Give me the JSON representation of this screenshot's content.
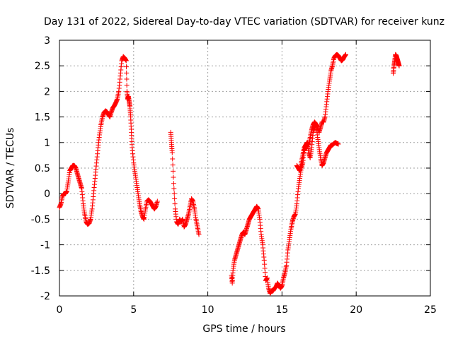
{
  "chart_data": {
    "type": "scatter",
    "title": "Day 131 of 2022, Sidereal Day-to-day VTEC variation (SDTVAR) for receiver kunz",
    "xlabel": "GPS time / hours",
    "ylabel": "SDTVAR / TECUs",
    "xlim": [
      0,
      25
    ],
    "ylim": [
      -2,
      3
    ],
    "x_ticks": [
      0,
      5,
      10,
      15,
      20,
      25
    ],
    "x_tick_labels": [
      "0",
      "5",
      "10",
      "15",
      "20",
      "25"
    ],
    "y_ticks": [
      -2,
      -1.5,
      -1,
      -0.5,
      0,
      0.5,
      1,
      1.5,
      2,
      2.5,
      3
    ],
    "y_tick_labels": [
      "-2",
      "-1.5",
      "-1",
      "-0.5",
      "0",
      "0.5",
      "1",
      "1.5",
      "2",
      "2.5",
      "3"
    ],
    "grid": true,
    "marker": "plus",
    "series": [
      {
        "name": "SDTVAR",
        "color": "#ff0000",
        "segments": [
          {
            "x": [
              0.0,
              0.1,
              0.2,
              0.3,
              0.4,
              0.5,
              0.6,
              0.7,
              0.8,
              0.9,
              1.0,
              1.1,
              1.2,
              1.3,
              1.4,
              1.5,
              1.6,
              1.7,
              1.8,
              1.9,
              2.0,
              2.1,
              2.2,
              2.3,
              2.4,
              2.5,
              2.6,
              2.7,
              2.8,
              2.9,
              3.0,
              3.1,
              3.2,
              3.3,
              3.4,
              3.5,
              3.6,
              3.7,
              3.8,
              3.9,
              4.0,
              4.1,
              4.2,
              4.3,
              4.4,
              4.5,
              4.55,
              4.6,
              4.65,
              4.7,
              4.75,
              4.8,
              4.85,
              4.9,
              5.0,
              5.1,
              5.2,
              5.3,
              5.4,
              5.5,
              5.6,
              5.7,
              5.8,
              5.9,
              6.0,
              6.1,
              6.2,
              6.3,
              6.4,
              6.5,
              6.6
            ],
            "y": [
              -0.27,
              -0.2,
              -0.05,
              0.0,
              0.0,
              0.05,
              0.25,
              0.45,
              0.5,
              0.55,
              0.55,
              0.5,
              0.4,
              0.3,
              0.2,
              0.1,
              -0.2,
              -0.4,
              -0.55,
              -0.6,
              -0.58,
              -0.5,
              -0.3,
              0.0,
              0.3,
              0.6,
              0.9,
              1.15,
              1.35,
              1.5,
              1.58,
              1.62,
              1.6,
              1.55,
              1.5,
              1.6,
              1.68,
              1.72,
              1.78,
              1.85,
              2.0,
              2.3,
              2.6,
              2.68,
              2.65,
              2.6,
              2.0,
              1.85,
              1.9,
              1.8,
              1.7,
              1.5,
              1.2,
              0.9,
              0.6,
              0.4,
              0.2,
              0.0,
              -0.2,
              -0.35,
              -0.45,
              -0.5,
              -0.3,
              -0.15,
              -0.12,
              -0.15,
              -0.2,
              -0.25,
              -0.3,
              -0.25,
              -0.15
            ]
          },
          {
            "x": [
              7.5,
              7.55,
              7.6,
              7.7,
              7.8,
              7.9,
              8.0,
              8.1,
              8.2,
              8.3,
              8.4,
              8.5,
              8.6,
              8.7,
              8.8,
              8.9,
              9.0,
              9.1,
              9.2,
              9.3,
              9.4
            ],
            "y": [
              1.2,
              1.0,
              0.8,
              0.2,
              -0.3,
              -0.55,
              -0.6,
              -0.5,
              -0.55,
              -0.5,
              -0.65,
              -0.6,
              -0.5,
              -0.4,
              -0.25,
              -0.1,
              -0.15,
              -0.3,
              -0.5,
              -0.65,
              -0.8
            ]
          },
          {
            "x": [
              11.6,
              11.65,
              11.7,
              11.8,
              11.9,
              12.0,
              12.1,
              12.2,
              12.3,
              12.4,
              12.5,
              12.6,
              12.7,
              12.8,
              12.9,
              13.0,
              13.1,
              13.2,
              13.3,
              13.4,
              13.5,
              13.6,
              13.7,
              13.8,
              13.9,
              14.0,
              14.1,
              14.2,
              14.3,
              14.4,
              14.5,
              14.6,
              14.7,
              14.8,
              14.9,
              15.0,
              15.1,
              15.2,
              15.3,
              15.4,
              15.5,
              15.6,
              15.7,
              15.8,
              15.9,
              16.0,
              16.1,
              16.2,
              16.3,
              16.4,
              16.5,
              16.6,
              16.7,
              16.8,
              16.9,
              17.0,
              17.1,
              17.2,
              17.3,
              17.4,
              17.5,
              17.6,
              17.7,
              17.8,
              17.9,
              18.0,
              18.1,
              18.2,
              18.3,
              18.4,
              18.5,
              18.6,
              18.7,
              18.8,
              18.9,
              19.0,
              19.1,
              19.2,
              19.3
            ],
            "y": [
              -1.6,
              -1.75,
              -1.5,
              -1.3,
              -1.2,
              -1.1,
              -1.0,
              -0.9,
              -0.8,
              -0.75,
              -0.8,
              -0.7,
              -0.6,
              -0.5,
              -0.45,
              -0.4,
              -0.35,
              -0.3,
              -0.25,
              -0.3,
              -0.5,
              -0.8,
              -1.0,
              -1.3,
              -1.7,
              -1.65,
              -1.85,
              -1.95,
              -1.9,
              -1.9,
              -1.85,
              -1.82,
              -1.75,
              -1.8,
              -1.85,
              -1.8,
              -1.65,
              -1.55,
              -1.4,
              -1.1,
              -0.9,
              -0.7,
              -0.55,
              -0.45,
              -0.4,
              -0.2,
              0.1,
              0.3,
              0.5,
              0.6,
              0.85,
              0.9,
              1.0,
              0.95,
              1.1,
              1.25,
              1.35,
              1.4,
              1.35,
              1.3,
              1.2,
              1.3,
              1.4,
              1.4,
              1.5,
              1.75,
              2.0,
              2.2,
              2.4,
              2.5,
              2.65,
              2.7,
              2.72,
              2.7,
              2.65,
              2.6,
              2.62,
              2.68,
              2.72
            ]
          },
          {
            "x": [
              16.0,
              16.1,
              16.2,
              16.3,
              16.4,
              16.5,
              16.6,
              16.7,
              16.8,
              16.9,
              17.0,
              17.1,
              17.2,
              17.3,
              17.4,
              17.5,
              17.6,
              17.7,
              17.8,
              17.9,
              18.0,
              18.1,
              18.2,
              18.3,
              18.4,
              18.5,
              18.6,
              18.7,
              18.8
            ],
            "y": [
              0.55,
              0.5,
              0.45,
              0.6,
              0.75,
              0.9,
              0.95,
              1.0,
              0.8,
              0.7,
              0.9,
              1.2,
              1.3,
              1.35,
              1.1,
              0.9,
              0.7,
              0.55,
              0.6,
              0.7,
              0.8,
              0.85,
              0.9,
              0.95,
              0.95,
              0.98,
              1.0,
              0.98,
              0.97
            ]
          },
          {
            "x": [
              22.5,
              22.55,
              22.6,
              22.65,
              22.7,
              22.75,
              22.8,
              22.85,
              22.9
            ],
            "y": [
              2.35,
              2.5,
              2.6,
              2.72,
              2.7,
              2.65,
              2.6,
              2.55,
              2.5
            ]
          }
        ]
      }
    ]
  }
}
